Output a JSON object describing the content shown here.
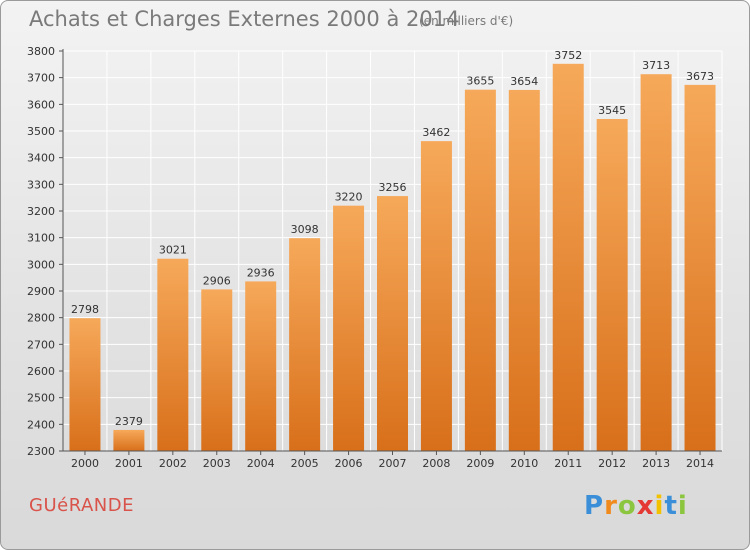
{
  "title": "Achats et Charges Externes 2000 à 2014",
  "subtitle": "(en milliers d'€)",
  "city": "GUéRANDE",
  "logo_text": "Proxiti",
  "colors": {
    "bar_light": "#f6a95a",
    "bar_dark": "#d86f1a",
    "grid": "#ffffff",
    "axis": "#555555",
    "city": "#d9534a"
  },
  "chart_data": {
    "type": "bar",
    "title": "Achats et Charges Externes 2000 à 2014",
    "subtitle": "(en milliers d'€)",
    "categories": [
      "2000",
      "2001",
      "2002",
      "2003",
      "2004",
      "2005",
      "2006",
      "2007",
      "2008",
      "2009",
      "2010",
      "2011",
      "2012",
      "2013",
      "2014"
    ],
    "values": [
      2798,
      2379,
      3021,
      2906,
      2936,
      3098,
      3220,
      3256,
      3462,
      3655,
      3654,
      3752,
      3545,
      3713,
      3673
    ],
    "ylim": [
      2300,
      3800
    ],
    "yticks": [
      2300,
      2400,
      2500,
      2600,
      2700,
      2800,
      2900,
      3000,
      3100,
      3200,
      3300,
      3400,
      3500,
      3600,
      3700,
      3800
    ],
    "grid": true,
    "data_labels": true
  }
}
